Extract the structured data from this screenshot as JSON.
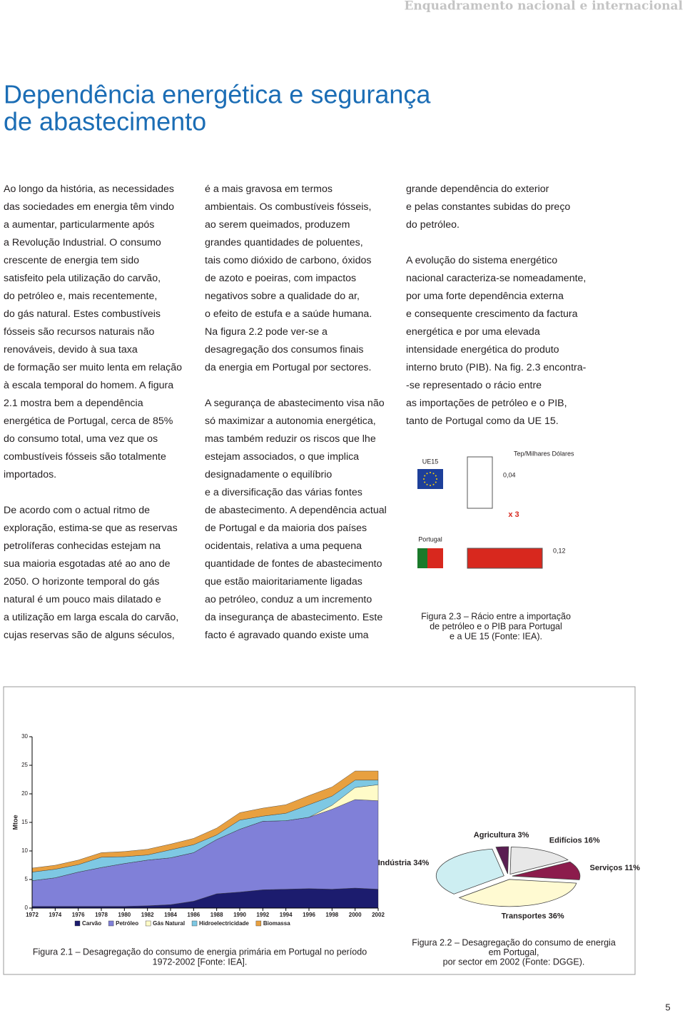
{
  "header": {
    "running_title": "Enquadramento nacional e internacional",
    "page_number": "5"
  },
  "title": [
    "Dependência energética e segurança",
    "de abastecimento"
  ],
  "columns": [
    [
      [
        "Ao longo da história, as necessidades",
        "das sociedades em energia têm vindo",
        "a aumentar, particularmente após",
        "a Revolução Industrial. O consumo",
        "crescente de energia tem sido",
        "satisfeito pela utilização do carvão,",
        "do petróleo e, mais recentemente,",
        "do gás natural. Estes combustíveis",
        "fósseis são recursos naturais não",
        "renováveis, devido à sua taxa",
        "de formação ser muito lenta em relação",
        "à escala temporal do homem. A figura",
        "2.1 mostra bem a dependência",
        "energética de Portugal, cerca de 85%",
        "do consumo total, uma vez que os",
        "combustíveis fósseis são totalmente",
        "importados."
      ],
      [
        "De acordo com o actual ritmo de",
        "exploração, estima-se que as reservas",
        "petrolíferas conhecidas estejam na",
        "sua maioria esgotadas até ao ano de",
        "2050. O horizonte temporal do gás",
        "natural é um pouco mais dilatado e",
        "a utilização em larga escala do carvão,",
        "cujas reservas são de alguns séculos,"
      ]
    ],
    [
      [
        "é a mais gravosa em termos",
        "ambientais. Os combustíveis fósseis,",
        "ao serem queimados, produzem",
        "grandes quantidades de poluentes,",
        "tais como dióxido de carbono, óxidos",
        "de azoto e poeiras, com impactos",
        "negativos sobre a qualidade do ar,",
        "o efeito de estufa e a saúde humana.",
        "Na figura 2.2 pode ver-se a",
        "desagregação dos consumos finais",
        "da energia em Portugal por sectores."
      ],
      [
        "A segurança de abastecimento visa não",
        "só maximizar a autonomia energética,",
        "mas também reduzir os riscos que lhe",
        "estejam associados, o que implica",
        "designadamente o equilíbrio",
        "e a diversificação das várias fontes",
        "de abastecimento. A dependência actual",
        "de Portugal e da maioria dos países",
        "ocidentais, relativa a uma pequena",
        "quantidade de fontes de abastecimento",
        "que estão maioritariamente ligadas",
        "ao petróleo, conduz a um incremento",
        "da insegurança de abastecimento. Este",
        "facto é agravado quando existe uma"
      ]
    ],
    [
      [
        "grande dependência do exterior",
        "e pelas constantes subidas do preço",
        "do petróleo."
      ],
      [
        "A evolução do sistema energético",
        "nacional caracteriza-se nomeadamente,",
        "por uma forte dependência externa",
        "e consequente crescimento da factura",
        "energética e por uma elevada",
        "intensidade energética do produto",
        "interno bruto (PIB). Na fig. 2.3 encontra-",
        "-se representado o rácio entre",
        "as importações de petróleo e o PIB,",
        "tanto de Portugal como da UE 15."
      ]
    ]
  ],
  "chart_data": [
    {
      "type": "bar",
      "unit_label": "Tep/Milhares Dólares",
      "categories": [
        "UE15",
        "Portugal"
      ],
      "values": [
        0.04,
        0.12
      ],
      "value_labels": [
        "0,04",
        "0,12"
      ],
      "colors": [
        "#ffffff",
        "#d8281e"
      ],
      "annotation": "x 3",
      "caption": [
        "Figura 2.3 – Rácio entre a importação",
        "de petróleo e o PIB para Portugal",
        "e a UE 15 (Fonte: IEA)."
      ]
    },
    {
      "type": "area",
      "stacked": true,
      "y_label": "Mtoe",
      "x": [
        1972,
        1974,
        1976,
        1978,
        1980,
        1982,
        1984,
        1986,
        1988,
        1990,
        1992,
        1994,
        1996,
        1998,
        2000,
        2002
      ],
      "xlim": [
        1972,
        2002
      ],
      "xticks": [
        1972,
        1974,
        1976,
        1978,
        1980,
        1982,
        1984,
        1986,
        1988,
        1990,
        1992,
        1994,
        1996,
        1998,
        2000,
        2002
      ],
      "ylim": [
        0,
        30
      ],
      "yticks": [
        0,
        5,
        10,
        15,
        20,
        25,
        30
      ],
      "series": [
        {
          "name": "Carvão",
          "color": "#1c1c6e",
          "values": [
            0.3,
            0.3,
            0.3,
            0.3,
            0.3,
            0.4,
            0.6,
            1.2,
            2.5,
            2.8,
            3.2,
            3.3,
            3.4,
            3.3,
            3.5,
            3.3
          ]
        },
        {
          "name": "Petróleo",
          "color": "#8080d8",
          "values": [
            4.5,
            5,
            6,
            6.8,
            7.5,
            8,
            8.2,
            8.5,
            9.5,
            11,
            12,
            12,
            12.5,
            14,
            15.5,
            15.5
          ]
        },
        {
          "name": "Gás Natural",
          "color": "#fffbc8",
          "values": [
            0,
            0,
            0,
            0,
            0,
            0,
            0,
            0,
            0,
            0,
            0,
            0,
            0,
            0.7,
            2.1,
            2.8
          ]
        },
        {
          "name": "Hidroelectricidade",
          "color": "#7ec8e3",
          "values": [
            1.5,
            1.5,
            1.3,
            1.8,
            1.2,
            0.9,
            1.4,
            1.4,
            0.8,
            1.6,
            0.9,
            1.3,
            2.2,
            1.6,
            1.3,
            0.8
          ]
        },
        {
          "name": "Biomassa",
          "color": "#e8a040",
          "values": [
            0.7,
            0.7,
            0.8,
            0.8,
            0.9,
            1,
            1,
            1.1,
            1.2,
            1.3,
            1.4,
            1.5,
            1.6,
            1.6,
            1.6,
            1.6
          ]
        }
      ],
      "caption": [
        "Figura 2.1 – Desagregação do consumo de energia primária em Portugal no período",
        "1972-2002 [Fonte: IEA]."
      ]
    },
    {
      "type": "pie",
      "labels": [
        "Agricultura 3%",
        "Edifícios 16%",
        "Serviços 11%",
        "Transportes 36%",
        "Indústria 34%"
      ],
      "values": [
        3,
        16,
        11,
        36,
        34
      ],
      "colors": [
        "#5a1e52",
        "#e8e8e8",
        "#8c1c4c",
        "#fffad2",
        "#cdeef2"
      ],
      "caption": [
        "Figura 2.2 – Desagregação do consumo de energia",
        "em Portugal,",
        "por sector em 2002 (Fonte: DGGE)."
      ]
    }
  ]
}
